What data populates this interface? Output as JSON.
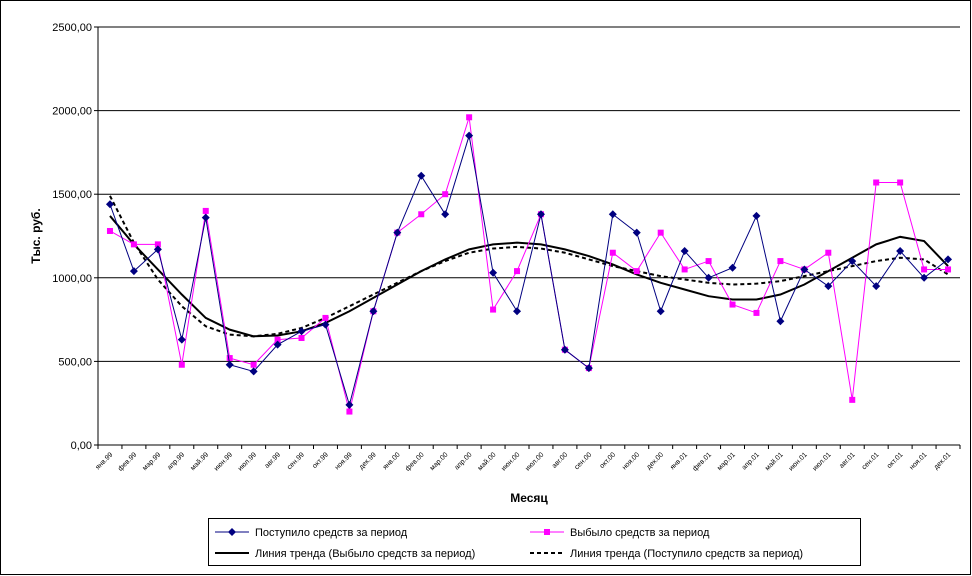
{
  "chart_data": {
    "type": "line",
    "y_label": "Тыс. руб.",
    "x_label": "Месяц",
    "categories": [
      "янв.99",
      "фев.99",
      "мар.99",
      "апр.99",
      "май.99",
      "июн.99",
      "июл.99",
      "авг.99",
      "сен.99",
      "окт.99",
      "ноя.99",
      "дек.99",
      "янв.00",
      "фев.00",
      "мар.00",
      "апр.00",
      "май.00",
      "июн.00",
      "июл.00",
      "авг.00",
      "сен.00",
      "окт.00",
      "ноя.00",
      "дек.00",
      "янв.01",
      "фев.01",
      "мар.01",
      "апр.01",
      "май.01",
      "июн.01",
      "июл.01",
      "авг.01",
      "сен.01",
      "окт.01",
      "ноя.01",
      "дек.01"
    ],
    "series": [
      {
        "name": "Поступило средств за период",
        "color": "#000080",
        "marker": "diamond",
        "dash": "solid",
        "values": [
          1440,
          1040,
          1170,
          630,
          1360,
          480,
          440,
          600,
          680,
          720,
          240,
          800,
          1270,
          1610,
          1380,
          1850,
          1030,
          800,
          1380,
          570,
          460,
          1380,
          1270,
          800,
          1160,
          1000,
          1060,
          1370,
          740,
          1050,
          950,
          1100,
          950,
          1160,
          1000,
          1110
        ]
      },
      {
        "name": "Выбыло средств за период",
        "color": "#ff00ff",
        "marker": "square",
        "dash": "solid",
        "values": [
          1280,
          1200,
          1200,
          480,
          1400,
          520,
          480,
          630,
          640,
          760,
          200,
          800,
          1270,
          1380,
          1500,
          1960,
          810,
          1040,
          1380,
          570,
          460,
          1150,
          1040,
          1270,
          1050,
          1100,
          840,
          790,
          1100,
          1050,
          1150,
          270,
          1570,
          1570,
          1050,
          1050
        ]
      },
      {
        "name": "Линия тренда (Выбыло средств за период)",
        "color": "#000000",
        "marker": "none",
        "dash": "solid",
        "values": [
          1370,
          1200,
          1050,
          900,
          760,
          690,
          650,
          655,
          680,
          730,
          800,
          880,
          960,
          1040,
          1110,
          1170,
          1200,
          1210,
          1200,
          1170,
          1130,
          1080,
          1020,
          970,
          930,
          890,
          870,
          870,
          900,
          960,
          1040,
          1120,
          1200,
          1245,
          1220,
          1070
        ]
      },
      {
        "name": "Линия тренда (Поступило средств за период)",
        "color": "#000000",
        "marker": "none",
        "dash": "dashed",
        "values": [
          1490,
          1210,
          990,
          830,
          710,
          660,
          650,
          665,
          700,
          760,
          830,
          900,
          970,
          1040,
          1100,
          1150,
          1175,
          1185,
          1175,
          1150,
          1110,
          1070,
          1040,
          1010,
          990,
          970,
          960,
          965,
          980,
          1010,
          1040,
          1070,
          1100,
          1120,
          1110,
          1020
        ]
      }
    ],
    "ylim": [
      0,
      2500
    ],
    "yticks": [
      {
        "value": 0,
        "label": "0,00"
      },
      {
        "value": 500,
        "label": "500,00"
      },
      {
        "value": 1000,
        "label": "1000,00"
      },
      {
        "value": 1500,
        "label": "1500,00"
      },
      {
        "value": 2000,
        "label": "2000,00"
      },
      {
        "value": 2500,
        "label": "2500,00"
      }
    ],
    "grid": true,
    "legend": "bottom"
  }
}
